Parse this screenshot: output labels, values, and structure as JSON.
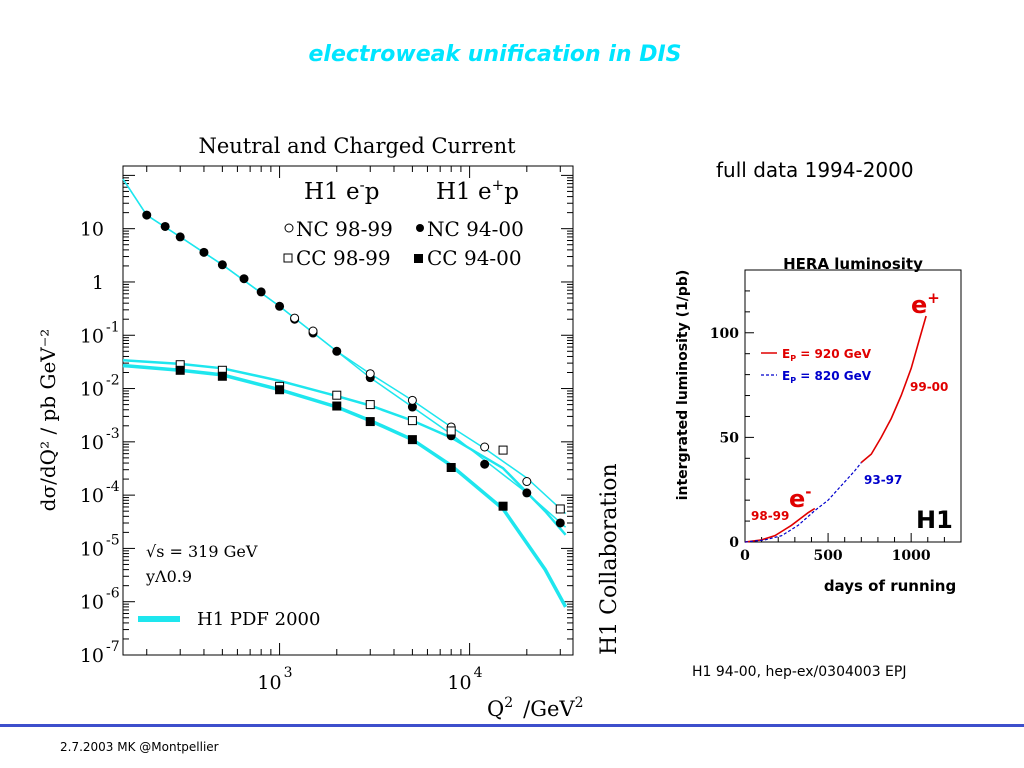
{
  "slide": {
    "title": "electroweak unification in DIS",
    "full_data": "full data 1994-2000",
    "reference": "H1 94-00,  hep-ex/0304003 EPJ",
    "footer": "2.7.2003 MK @Montpellier",
    "colors": {
      "title": "#00e5ff",
      "accent_line": "#3d4fcc",
      "theory": "#1ee6ee",
      "ep920": "#e00000",
      "ep820": "#0000cc"
    }
  },
  "chart_data": [
    {
      "type": "scatter",
      "title": "Neutral and Charged Current",
      "xlabel": "Q",
      "xlabel_sup": "2",
      "xlabel_unit": "/GeV",
      "xlabel_unit_sup": "2",
      "ylabel": "dσ/dQ² / pb GeV⁻²",
      "xscale": "log",
      "yscale": "log",
      "xlim": [
        150,
        35000
      ],
      "ylim": [
        1e-07,
        150
      ],
      "x_ticks": [
        {
          "base": "10",
          "exp": "3"
        },
        {
          "base": "10",
          "exp": "4"
        }
      ],
      "y_ticks": [
        {
          "base": "10",
          "exp": ""
        },
        {
          "base": "1",
          "exp": ""
        },
        {
          "base": "10",
          "exp": "-1"
        },
        {
          "base": "10",
          "exp": "-2"
        },
        {
          "base": "10",
          "exp": "-3"
        },
        {
          "base": "10",
          "exp": "-4"
        },
        {
          "base": "10",
          "exp": "-5"
        },
        {
          "base": "10",
          "exp": "-6"
        },
        {
          "base": "10",
          "exp": "-7"
        }
      ],
      "header_left": "H1 e",
      "header_left_sup": "-",
      "header_left_tail": "p",
      "header_right": "H1 e",
      "header_right_sup": "+",
      "header_right_tail": "p",
      "legend": {
        "nc_em": "NC 98-99",
        "cc_em": "CC 98-99",
        "nc_ep": "NC 94-00",
        "cc_ep": "CC 94-00",
        "theory": "H1 PDF 2000"
      },
      "annotation_sqrt": "√s = 319 GeV",
      "annotation_y": "yΛ0.9",
      "side_label": "H1 Collaboration",
      "series": [
        {
          "name": "NC 94-00",
          "marker": "filled-circle",
          "x": [
            200,
            250,
            300,
            400,
            500,
            650,
            800,
            1000,
            1200,
            1500,
            2000,
            3000,
            5000,
            8000,
            12000,
            20000,
            30000
          ],
          "y": [
            18,
            11,
            7.0,
            3.6,
            2.1,
            1.15,
            0.65,
            0.35,
            0.2,
            0.11,
            0.05,
            0.016,
            0.0045,
            0.0013,
            0.00038,
            0.00011,
            3e-05
          ]
        },
        {
          "name": "NC 98-99",
          "marker": "open-circle",
          "x": [
            1200,
            1500,
            3000,
            5000,
            8000,
            12000,
            20000,
            30000
          ],
          "y": [
            0.21,
            0.12,
            0.019,
            0.006,
            0.0019,
            0.0008,
            0.00018,
            5.5e-05
          ]
        },
        {
          "name": "CC 98-99",
          "marker": "open-square",
          "x": [
            300,
            500,
            1000,
            2000,
            3000,
            5000,
            8000,
            15000,
            30000
          ],
          "y": [
            0.028,
            0.022,
            0.011,
            0.0075,
            0.005,
            0.0025,
            0.0016,
            0.0007,
            5.5e-05
          ]
        },
        {
          "name": "CC 94-00",
          "marker": "filled-square",
          "x": [
            300,
            500,
            1000,
            2000,
            3000,
            5000,
            8000,
            15000
          ],
          "y": [
            0.022,
            0.017,
            0.0095,
            0.0047,
            0.0024,
            0.0011,
            0.00033,
            6.2e-05
          ]
        }
      ]
    },
    {
      "type": "line",
      "title": "HERA luminosity",
      "xlabel": "days of running",
      "ylabel": "intergrated luminosity (1/pb)",
      "xlim": [
        0,
        1300
      ],
      "ylim": [
        0,
        130
      ],
      "x_ticks": [
        "0",
        "500",
        "1000"
      ],
      "y_ticks": [
        "0",
        "50",
        "100"
      ],
      "legend": {
        "ep920_prefix": "E",
        "ep920_sub": "P",
        "ep920_suffix": " = 920 GeV",
        "ep820_prefix": "E",
        "ep820_sub": "P",
        "ep820_suffix": " = 820 GeV"
      },
      "labels": {
        "e_plus": "e",
        "e_plus_sup": "+",
        "e_minus": "e",
        "e_minus_sup": "-",
        "p9900": "99-00",
        "p9397": "93-97",
        "p9899": "98-99",
        "brand": "H1"
      },
      "series": [
        {
          "name": "E_P = 920 GeV",
          "style": "solid",
          "x": [
            0,
            100,
            180,
            220,
            280,
            330,
            380,
            420
          ],
          "y": [
            0,
            1,
            3,
            5,
            8,
            11,
            14,
            16
          ]
        },
        {
          "name": "E_P = 820 GeV",
          "style": "dashed",
          "x": [
            0,
            120,
            220,
            320,
            420,
            500,
            580,
            660,
            700
          ],
          "y": [
            0,
            1,
            3,
            8,
            15,
            20,
            27,
            34,
            38
          ]
        },
        {
          "name": "E_P = 920 GeV (99-00)",
          "style": "solid",
          "x": [
            700,
            760,
            820,
            880,
            940,
            1000,
            1050,
            1090
          ],
          "y": [
            38,
            42,
            50,
            59,
            70,
            83,
            97,
            108
          ]
        }
      ]
    }
  ]
}
